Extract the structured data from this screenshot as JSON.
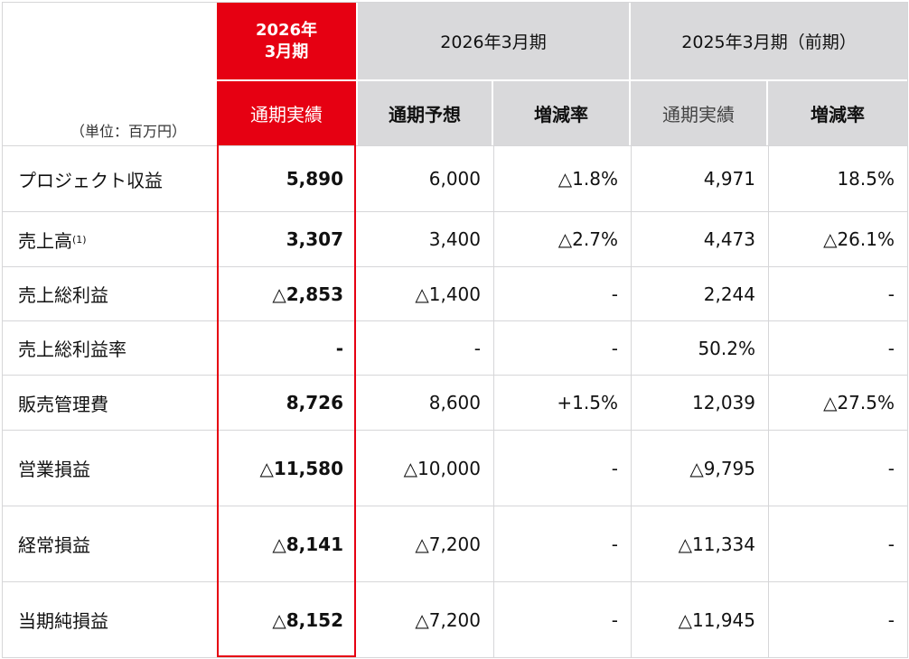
{
  "header": {
    "unit_label": "（単位：百万円）",
    "current_period_line1": "2026年",
    "current_period_line2": "3月期",
    "current_sub": "通期実績",
    "forecast_group": "2026年3月期",
    "forecast_sub": "通期予想",
    "forecast_change_sub": "増減率",
    "prior_group": "2025年3月期（前期）",
    "prior_sub": "通期実績",
    "prior_change_sub": "増減率"
  },
  "rows": [
    {
      "label": "プロジェクト収益",
      "note": "",
      "actual": "5,890",
      "forecast": "6,000",
      "forecast_change": "△1.8%",
      "prior": "4,971",
      "prior_change": "18.5%"
    },
    {
      "label": "売上高",
      "note": "(1)",
      "actual": "3,307",
      "forecast": "3,400",
      "forecast_change": "△2.7%",
      "prior": "4,473",
      "prior_change": "△26.1%"
    },
    {
      "label": "売上総利益",
      "note": "",
      "actual": "△2,853",
      "forecast": "△1,400",
      "forecast_change": "-",
      "prior": "2,244",
      "prior_change": "-"
    },
    {
      "label": "売上総利益率",
      "note": "",
      "actual": "-",
      "forecast": "-",
      "forecast_change": "-",
      "prior": "50.2%",
      "prior_change": "-"
    },
    {
      "label": "販売管理費",
      "note": "",
      "actual": "8,726",
      "forecast": "8,600",
      "forecast_change": "+1.5%",
      "prior": "12,039",
      "prior_change": "△27.5%"
    },
    {
      "label": "営業損益",
      "note": "",
      "actual": "△11,580",
      "forecast": "△10,000",
      "forecast_change": "-",
      "prior": "△9,795",
      "prior_change": "-"
    },
    {
      "label": "経常損益",
      "note": "",
      "actual": "△8,141",
      "forecast": "△7,200",
      "forecast_change": "-",
      "prior": "△11,334",
      "prior_change": "-"
    },
    {
      "label": "当期純損益",
      "note": "",
      "actual": "△8,152",
      "forecast": "△7,200",
      "forecast_change": "-",
      "prior": "△11,945",
      "prior_change": "-"
    }
  ],
  "colors": {
    "accent_red": "#e60012",
    "header_grey": "#d9d9db",
    "grid": "#d6d6d8"
  }
}
